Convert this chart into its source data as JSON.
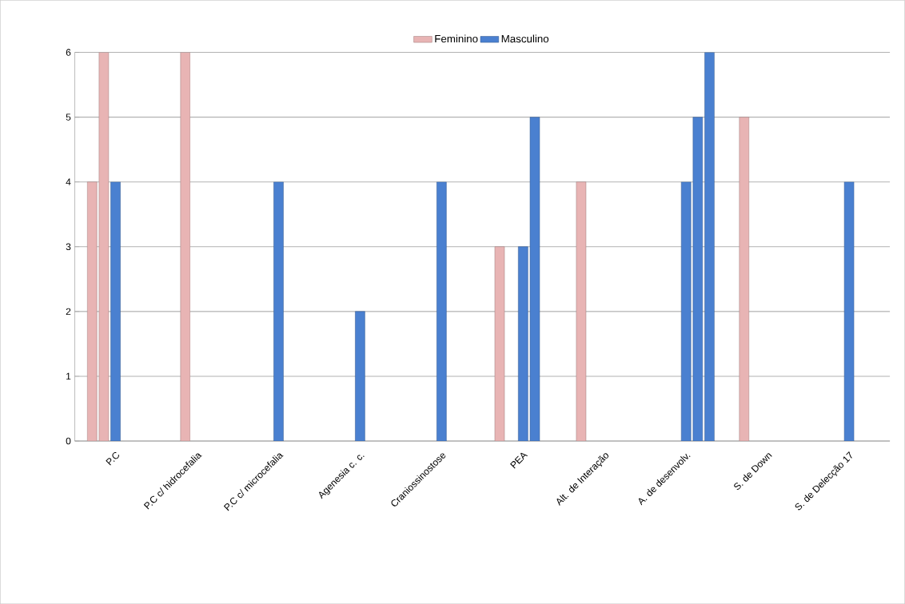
{
  "chart_data": {
    "type": "bar",
    "categories": [
      "P.C",
      "P.C c/ hidrocefalia",
      "P.C c/ microcefalia",
      "Agenesia c. c.",
      "Craniossinostose",
      "PEA",
      "Alt. de Interação",
      "A. de desenvolv.",
      "S. de Down",
      "S. de Delecção 17"
    ],
    "series": [
      {
        "name": "Feminino",
        "color": "#e8b4b4",
        "values": [
          4,
          null,
          null,
          null,
          null,
          3,
          4,
          null,
          5,
          null
        ]
      },
      {
        "color": "#e8b4b4",
        "values": [
          6,
          6,
          null,
          null,
          null,
          null,
          null,
          null,
          null,
          null
        ]
      },
      {
        "name": "Masculino",
        "color": "#4a80d0",
        "values": [
          4,
          null,
          4,
          2,
          4,
          3,
          null,
          4,
          null,
          4
        ]
      },
      {
        "color": "#4a80d0",
        "values": [
          null,
          null,
          null,
          null,
          null,
          5,
          null,
          5,
          null,
          null
        ]
      },
      {
        "color": "#4a80d0",
        "values": [
          null,
          null,
          null,
          null,
          null,
          null,
          null,
          6,
          null,
          null
        ]
      }
    ],
    "ylim": [
      0,
      6
    ],
    "yticks": [
      0,
      1,
      2,
      3,
      4,
      5,
      6
    ],
    "grid": "y",
    "legend": "top"
  }
}
